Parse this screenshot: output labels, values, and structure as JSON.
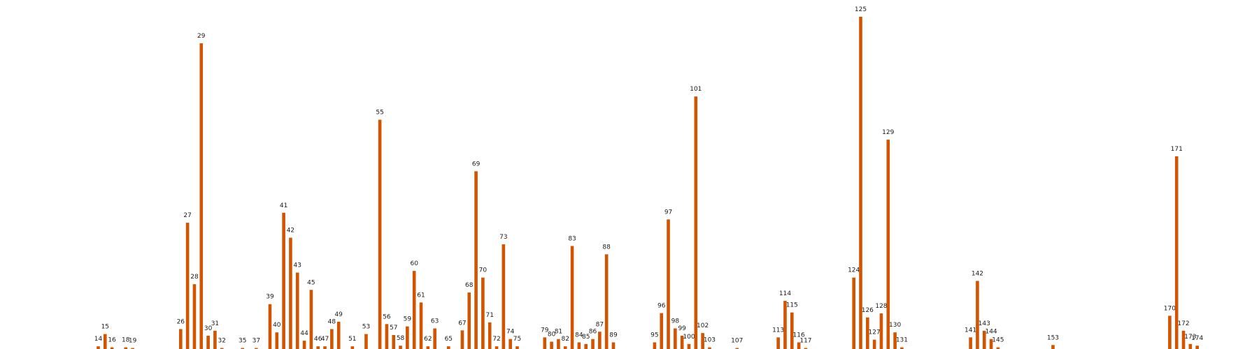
{
  "chart_data": {
    "type": "bar",
    "color": "#d35400",
    "x_range": [
      0,
      180
    ],
    "ylim": [
      0,
      100
    ],
    "bars": [
      {
        "label": "14",
        "x": 14,
        "value": 0.8
      },
      {
        "label": "15",
        "x": 15,
        "value": 4.5
      },
      {
        "label": "16",
        "x": 16,
        "value": 0.5
      },
      {
        "label": "18",
        "x": 18,
        "value": 0.5
      },
      {
        "label": "19",
        "x": 19,
        "value": 0.3
      },
      {
        "label": "26",
        "x": 26,
        "value": 6
      },
      {
        "label": "27",
        "x": 27,
        "value": 38
      },
      {
        "label": "28",
        "x": 28,
        "value": 19.5
      },
      {
        "label": "29",
        "x": 29,
        "value": 92
      },
      {
        "label": "30",
        "x": 30,
        "value": 4
      },
      {
        "label": "31",
        "x": 31,
        "value": 5.5
      },
      {
        "label": "32",
        "x": 32,
        "value": 0.3
      },
      {
        "label": "35",
        "x": 35,
        "value": 0.3
      },
      {
        "label": "37",
        "x": 37,
        "value": 0.3
      },
      {
        "label": "39",
        "x": 39,
        "value": 13.5
      },
      {
        "label": "40",
        "x": 40,
        "value": 5
      },
      {
        "label": "41",
        "x": 41,
        "value": 41
      },
      {
        "label": "42",
        "x": 42,
        "value": 33.5
      },
      {
        "label": "43",
        "x": 43,
        "value": 23
      },
      {
        "label": "44",
        "x": 44,
        "value": 2.5
      },
      {
        "label": "45",
        "x": 45,
        "value": 17.8
      },
      {
        "label": "46",
        "x": 46,
        "value": 0.8
      },
      {
        "label": "47",
        "x": 47,
        "value": 0.8
      },
      {
        "label": "48",
        "x": 48,
        "value": 6
      },
      {
        "label": "49",
        "x": 49,
        "value": 8.2
      },
      {
        "label": "51",
        "x": 51,
        "value": 0.8
      },
      {
        "label": "53",
        "x": 53,
        "value": 4.5
      },
      {
        "label": "55",
        "x": 55,
        "value": 69
      },
      {
        "label": "56",
        "x": 56,
        "value": 7.5
      },
      {
        "label": "57",
        "x": 57,
        "value": 4.2
      },
      {
        "label": "58",
        "x": 58,
        "value": 1
      },
      {
        "label": "59",
        "x": 59,
        "value": 6.8
      },
      {
        "label": "60",
        "x": 60,
        "value": 23.5
      },
      {
        "label": "61",
        "x": 61,
        "value": 14
      },
      {
        "label": "62",
        "x": 62,
        "value": 0.8
      },
      {
        "label": "63",
        "x": 63,
        "value": 6.2
      },
      {
        "label": "65",
        "x": 65,
        "value": 0.8
      },
      {
        "label": "67",
        "x": 67,
        "value": 5.6
      },
      {
        "label": "68",
        "x": 68,
        "value": 17
      },
      {
        "label": "69",
        "x": 69,
        "value": 53.5
      },
      {
        "label": "70",
        "x": 70,
        "value": 21.5
      },
      {
        "label": "71",
        "x": 71,
        "value": 8
      },
      {
        "label": "72",
        "x": 72,
        "value": 0.8
      },
      {
        "label": "73",
        "x": 73,
        "value": 31.5
      },
      {
        "label": "74",
        "x": 74,
        "value": 3
      },
      {
        "label": "75",
        "x": 75,
        "value": 0.8
      },
      {
        "label": "79",
        "x": 79,
        "value": 3.5
      },
      {
        "label": "80",
        "x": 80,
        "value": 2.2
      },
      {
        "label": "81",
        "x": 81,
        "value": 3
      },
      {
        "label": "82",
        "x": 82,
        "value": 0.8
      },
      {
        "label": "83",
        "x": 83,
        "value": 31
      },
      {
        "label": "84",
        "x": 84,
        "value": 2
      },
      {
        "label": "85",
        "x": 85,
        "value": 1.5
      },
      {
        "label": "86",
        "x": 86,
        "value": 3
      },
      {
        "label": "87",
        "x": 87,
        "value": 5.2
      },
      {
        "label": "88",
        "x": 88,
        "value": 28.5
      },
      {
        "label": "89",
        "x": 89,
        "value": 2
      },
      {
        "label": "95",
        "x": 95,
        "value": 2
      },
      {
        "label": "96",
        "x": 96,
        "value": 10.8
      },
      {
        "label": "97",
        "x": 97,
        "value": 39
      },
      {
        "label": "98",
        "x": 98,
        "value": 6.2
      },
      {
        "label": "99",
        "x": 99,
        "value": 4
      },
      {
        "label": "100",
        "x": 100,
        "value": 1.5
      },
      {
        "label": "101",
        "x": 101,
        "value": 76
      },
      {
        "label": "102",
        "x": 102,
        "value": 4.8
      },
      {
        "label": "103",
        "x": 103,
        "value": 0.5
      },
      {
        "label": "107",
        "x": 107,
        "value": 0.3
      },
      {
        "label": "113",
        "x": 113,
        "value": 3.5
      },
      {
        "label": "114",
        "x": 114,
        "value": 14.5
      },
      {
        "label": "115",
        "x": 115,
        "value": 11
      },
      {
        "label": "116",
        "x": 116,
        "value": 2
      },
      {
        "label": "117",
        "x": 117,
        "value": 0.3
      },
      {
        "label": "124",
        "x": 124,
        "value": 21.5
      },
      {
        "label": "125",
        "x": 125,
        "value": 100
      },
      {
        "label": "126",
        "x": 126,
        "value": 9.5
      },
      {
        "label": "127",
        "x": 127,
        "value": 2.8
      },
      {
        "label": "128",
        "x": 128,
        "value": 10.7
      },
      {
        "label": "129",
        "x": 129,
        "value": 63
      },
      {
        "label": "130",
        "x": 130,
        "value": 5
      },
      {
        "label": "131",
        "x": 131,
        "value": 0.5
      },
      {
        "label": "141",
        "x": 141,
        "value": 3.5
      },
      {
        "label": "142",
        "x": 142,
        "value": 20.5
      },
      {
        "label": "143",
        "x": 143,
        "value": 5.5
      },
      {
        "label": "144",
        "x": 144,
        "value": 3
      },
      {
        "label": "145",
        "x": 145,
        "value": 0.5
      },
      {
        "label": "153",
        "x": 153,
        "value": 1.2
      },
      {
        "label": "170",
        "x": 170,
        "value": 10
      },
      {
        "label": "171",
        "x": 171,
        "value": 58
      },
      {
        "label": "172",
        "x": 172,
        "value": 5.5
      },
      {
        "label": "173",
        "x": 173,
        "value": 1.5
      },
      {
        "label": "174",
        "x": 174,
        "value": 1
      }
    ]
  }
}
